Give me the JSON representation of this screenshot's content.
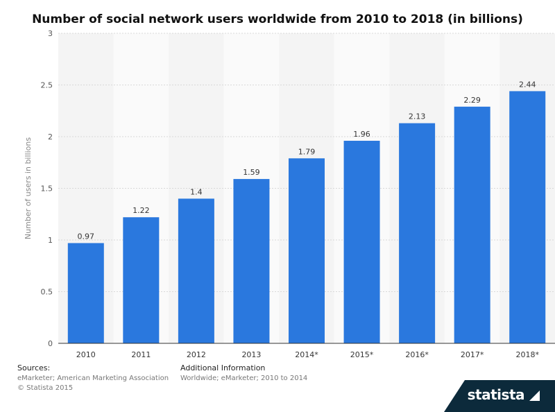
{
  "chart_data": {
    "type": "bar",
    "title": "Number of social network users worldwide from 2010 to 2018 (in billions)",
    "xlabel": "",
    "ylabel": "Number of users in billions",
    "categories": [
      "2010",
      "2011",
      "2012",
      "2013",
      "2014*",
      "2015*",
      "2016*",
      "2017*",
      "2018*"
    ],
    "values": [
      0.97,
      1.22,
      1.4,
      1.59,
      1.79,
      1.96,
      2.13,
      2.29,
      2.44
    ],
    "data_labels": [
      "0.97",
      "1.22",
      "1.4",
      "1.59",
      "1.79",
      "1.96",
      "2.13",
      "2.29",
      "2.44"
    ],
    "ylim": [
      0,
      3
    ],
    "yticks": [
      0,
      0.5,
      1,
      1.5,
      2,
      2.5,
      3
    ],
    "ytick_labels": [
      "0",
      "0.5",
      "1",
      "1.5",
      "2",
      "2.5",
      "3"
    ],
    "grid": true,
    "bar_color": "#2a78de",
    "band_colors": [
      "#f4f4f4",
      "#fafafa"
    ]
  },
  "footer": {
    "sources_label": "Sources:",
    "sources_text": "eMarketer; American Marketing Association",
    "copyright": "© Statista 2015",
    "additional_label": "Additional Information",
    "additional_text": "Worldwide; eMarketer; 2010 to 2014",
    "brand": "statista",
    "brand_color": "#0c2a3b"
  }
}
